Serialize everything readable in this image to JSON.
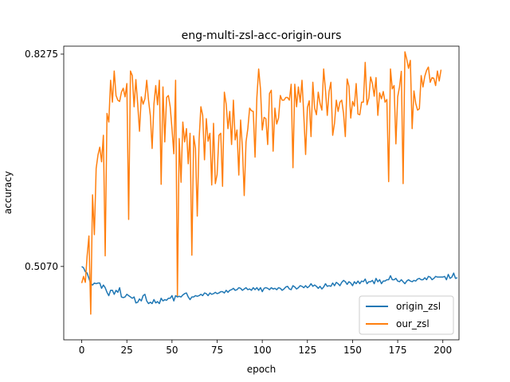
{
  "chart_data": {
    "type": "line",
    "title": "eng-multi-zsl-acc-origin-ours",
    "xlabel": "epoch",
    "ylabel": "accuracy",
    "xlim": [
      -9.95,
      208.95
    ],
    "ylim": [
      0.3963,
      0.8395
    ],
    "xticks": [
      0,
      25,
      50,
      75,
      100,
      125,
      150,
      175,
      200
    ],
    "yticks": [
      0.507,
      0.8275
    ],
    "ytick_labels": [
      "0.5070",
      "0.8275"
    ],
    "legend_position": "lower right",
    "grid": false,
    "x_start": 0,
    "x_step": 1,
    "series": [
      {
        "name": "origin_zsl",
        "color": "#1f77b4",
        "values": [
          0.507,
          0.505,
          0.499,
          0.497,
          0.489,
          0.481,
          0.479,
          0.482,
          0.481,
          0.482,
          0.482,
          0.474,
          0.479,
          0.475,
          0.468,
          0.463,
          0.471,
          0.471,
          0.465,
          0.471,
          0.468,
          0.475,
          0.461,
          0.46,
          0.461,
          0.465,
          0.463,
          0.461,
          0.459,
          0.461,
          0.452,
          0.453,
          0.458,
          0.455,
          0.463,
          0.465,
          0.455,
          0.451,
          0.453,
          0.451,
          0.457,
          0.452,
          0.454,
          0.451,
          0.459,
          0.455,
          0.457,
          0.456,
          0.459,
          0.459,
          0.463,
          0.455,
          0.463,
          0.461,
          0.462,
          0.461,
          0.464,
          0.466,
          0.467,
          0.461,
          0.457,
          0.461,
          0.461,
          0.463,
          0.462,
          0.463,
          0.465,
          0.463,
          0.467,
          0.466,
          0.463,
          0.467,
          0.465,
          0.466,
          0.468,
          0.466,
          0.467,
          0.469,
          0.469,
          0.467,
          0.471,
          0.468,
          0.471,
          0.472,
          0.474,
          0.471,
          0.472,
          0.475,
          0.474,
          0.471,
          0.473,
          0.475,
          0.472,
          0.473,
          0.471,
          0.475,
          0.472,
          0.475,
          0.471,
          0.475,
          0.469,
          0.474,
          0.475,
          0.474,
          0.472,
          0.475,
          0.473,
          0.474,
          0.472,
          0.475,
          0.474,
          0.471,
          0.473,
          0.476,
          0.477,
          0.473,
          0.472,
          0.478,
          0.476,
          0.473,
          0.475,
          0.478,
          0.477,
          0.475,
          0.478,
          0.475,
          0.477,
          0.481,
          0.477,
          0.479,
          0.477,
          0.474,
          0.477,
          0.473,
          0.476,
          0.481,
          0.477,
          0.478,
          0.477,
          0.482,
          0.478,
          0.483,
          0.481,
          0.478,
          0.483,
          0.486,
          0.484,
          0.48,
          0.484,
          0.482,
          0.478,
          0.484,
          0.481,
          0.485,
          0.481,
          0.485,
          0.484,
          0.488,
          0.481,
          0.484,
          0.484,
          0.486,
          0.481,
          0.489,
          0.484,
          0.487,
          0.481,
          0.485,
          0.485,
          0.487,
          0.487,
          0.493,
          0.487,
          0.487,
          0.489,
          0.485,
          0.484,
          0.487,
          0.484,
          0.481,
          0.485,
          0.487,
          0.485,
          0.484,
          0.486,
          0.485,
          0.488,
          0.489,
          0.487,
          0.487,
          0.49,
          0.487,
          0.492,
          0.491,
          0.487,
          0.489,
          0.492,
          0.491,
          0.491,
          0.491,
          0.491,
          0.492,
          0.487,
          0.495,
          0.489,
          0.491,
          0.497,
          0.489,
          0.49
        ]
      },
      {
        "name": "our_zsl",
        "color": "#ff7f0e",
        "values": [
          0.482,
          0.492,
          0.483,
          0.523,
          0.553,
          0.435,
          0.615,
          0.555,
          0.655,
          0.675,
          0.687,
          0.665,
          0.705,
          0.523,
          0.738,
          0.725,
          0.788,
          0.755,
          0.802,
          0.765,
          0.758,
          0.756,
          0.77,
          0.776,
          0.763,
          0.783,
          0.578,
          0.802,
          0.795,
          0.748,
          0.789,
          0.752,
          0.711,
          0.763,
          0.752,
          0.76,
          0.788,
          0.758,
          0.735,
          0.685,
          0.752,
          0.78,
          0.751,
          0.788,
          0.631,
          0.778,
          0.695,
          0.762,
          0.765,
          0.748,
          0.715,
          0.677,
          0.788,
          0.463,
          0.7,
          0.634,
          0.725,
          0.695,
          0.715,
          0.662,
          0.708,
          0.524,
          0.704,
          0.685,
          0.583,
          0.698,
          0.748,
          0.735,
          0.668,
          0.73,
          0.696,
          0.708,
          0.63,
          0.723,
          0.632,
          0.646,
          0.705,
          0.708,
          0.628,
          0.77,
          0.752,
          0.715,
          0.741,
          0.691,
          0.758,
          0.698,
          0.713,
          0.645,
          0.728,
          0.686,
          0.614,
          0.695,
          0.715,
          0.746,
          0.742,
          0.741,
          0.672,
          0.762,
          0.805,
          0.775,
          0.713,
          0.732,
          0.73,
          0.691,
          0.768,
          0.773,
          0.681,
          0.746,
          0.722,
          0.731,
          0.765,
          0.758,
          0.758,
          0.762,
          0.762,
          0.758,
          0.782,
          0.656,
          0.782,
          0.748,
          0.778,
          0.755,
          0.788,
          0.735,
          0.676,
          0.747,
          0.757,
          0.703,
          0.785,
          0.746,
          0.736,
          0.77,
          0.753,
          0.743,
          0.805,
          0.773,
          0.735,
          0.771,
          0.785,
          0.705,
          0.723,
          0.758,
          0.741,
          0.755,
          0.758,
          0.738,
          0.703,
          0.79,
          0.779,
          0.731,
          0.756,
          0.749,
          0.783,
          0.737,
          0.736,
          0.755,
          0.755,
          0.815,
          0.751,
          0.761,
          0.793,
          0.783,
          0.764,
          0.792,
          0.735,
          0.769,
          0.76,
          0.771,
          0.755,
          0.759,
          0.635,
          0.805,
          0.775,
          0.78,
          0.692,
          0.763,
          0.778,
          0.8015,
          0.632,
          0.831,
          0.82,
          0.806,
          0.818,
          0.715,
          0.772,
          0.753,
          0.743,
          0.745,
          0.795,
          0.778,
          0.794,
          0.803,
          0.808,
          0.785,
          0.792,
          0.791,
          0.78,
          0.802,
          0.787,
          0.804
        ]
      }
    ]
  }
}
